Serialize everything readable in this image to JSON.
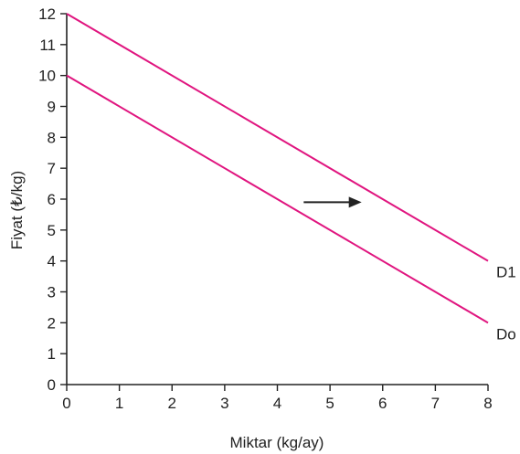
{
  "chart_data": {
    "type": "line",
    "title": "",
    "xlabel": "Miktar (kg/ay)",
    "ylabel": "Fiyat (₺/kg)",
    "xlim": [
      0,
      8
    ],
    "ylim": [
      0,
      12
    ],
    "x_ticks": [
      "0",
      "1",
      "2",
      "3",
      "4",
      "5",
      "6",
      "7",
      "8"
    ],
    "y_ticks": [
      "0",
      "1",
      "2",
      "3",
      "4",
      "5",
      "6",
      "7",
      "8",
      "9",
      "10",
      "11",
      "12"
    ],
    "grid": false,
    "series": [
      {
        "name": "D1",
        "x": [
          0,
          8
        ],
        "y": [
          12,
          4
        ],
        "color": "#e0157f"
      },
      {
        "name": "Do",
        "x": [
          0,
          8
        ],
        "y": [
          10,
          2
        ],
        "color": "#e0157f"
      }
    ],
    "annotations": [
      {
        "type": "arrow",
        "direction": "right",
        "from": [
          4.5,
          5.9
        ],
        "to": [
          5.6,
          5.9
        ],
        "color": "#222222"
      }
    ],
    "axis_color": "#222222"
  }
}
